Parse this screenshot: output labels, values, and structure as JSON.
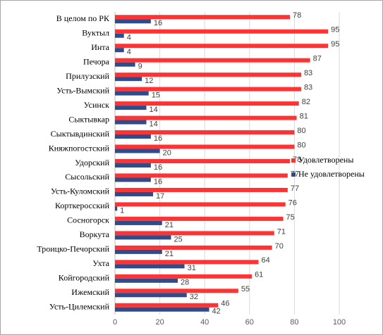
{
  "chart_data": {
    "type": "hbar",
    "categories": [
      "В целом по РК",
      "Вуктыл",
      "Инта",
      "Печора",
      "Прилузский",
      "Усть-Вымский",
      "Усинск",
      "Сыктывкар",
      "Сыктывдинский",
      "Княжпогостский",
      "Удорский",
      "Сысольский",
      "Усть-Куломский",
      "Корткеросский",
      "Сосногорск",
      "Воркута",
      "Троицко-Печорский",
      "Ухта",
      "Койгородский",
      "Ижемский",
      "Усть-Цилемский"
    ],
    "series": [
      {
        "name": "Удовлетворены",
        "color": "#ff3333",
        "values": [
          78,
          95,
          95,
          87,
          83,
          83,
          82,
          81,
          80,
          80,
          78,
          77,
          77,
          76,
          75,
          71,
          70,
          64,
          61,
          55,
          46
        ]
      },
      {
        "name": "Не удовлетворены",
        "color": "#2f4b8a",
        "values": [
          16,
          4,
          4,
          9,
          12,
          15,
          14,
          14,
          16,
          20,
          16,
          16,
          17,
          1,
          21,
          25,
          21,
          31,
          28,
          32,
          42
        ]
      }
    ],
    "xlim": [
      0,
      100
    ],
    "xticks": [
      0,
      20,
      40,
      60,
      80,
      100
    ],
    "grid": true,
    "legend": "right"
  }
}
